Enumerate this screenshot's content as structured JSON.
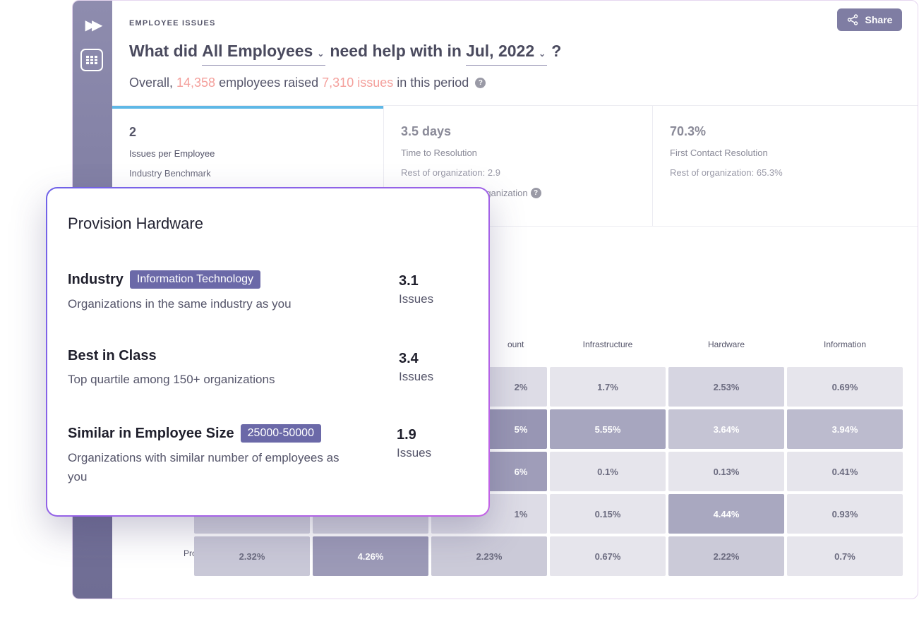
{
  "section_label": "EMPLOYEE ISSUES",
  "share": {
    "label": "Share",
    "icon": "share-icon"
  },
  "sidebar": {
    "expand_icon": "double-chevron-right-icon",
    "grid_icon": "grid-icon"
  },
  "question": {
    "prefix": "What did",
    "group_select": "All Employees",
    "middle": "need help with in",
    "period_select": "Jul, 2022",
    "suffix": "?"
  },
  "overall": {
    "prefix": "Overall,",
    "employees": "14,358",
    "middle": "employees raised",
    "issues": "7,310 issues",
    "suffix": "in this period"
  },
  "metrics": [
    {
      "value": "2",
      "label": "Issues per Employee",
      "sub": "Industry Benchmark"
    },
    {
      "value": "3.5 days",
      "label": "Time to Resolution",
      "sub": "Rest of organization: 2.9",
      "extra": "rganization"
    },
    {
      "value": "70.3%",
      "label": "First Contact Resolution",
      "sub": "Rest of organization: 65.3%"
    }
  ],
  "table": {
    "columns": [
      "ount",
      "Infrastructure",
      "Hardware",
      "Information"
    ],
    "rows": [
      [
        "2%",
        "1.7%",
        "2.53%",
        "0.69%"
      ],
      [
        "5%",
        "5.55%",
        "3.64%",
        "3.94%"
      ],
      [
        "6%",
        "0.1%",
        "0.13%",
        "0.41%"
      ],
      [
        "1%",
        "0.15%",
        "4.44%",
        "0.93%"
      ]
    ],
    "last_row": {
      "label": "Provision",
      "values": [
        "2.32%",
        "4.26%",
        "2.23%",
        "0.67%",
        "2.22%",
        "0.7%"
      ]
    },
    "colors": {
      "light": "#e6e5ec",
      "mid": "#d0cfdc",
      "strong": "#b9b8cc",
      "dark": "#9a98b6"
    }
  },
  "popup": {
    "title": "Provision Hardware",
    "benchmarks": [
      {
        "name": "Industry",
        "tag": "Information Technology",
        "desc": "Organizations in the same industry as you",
        "value": "3.1",
        "unit": "Issues"
      },
      {
        "name": "Best in Class",
        "tag": "",
        "desc": "Top quartile among 150+ organizations",
        "value": "3.4",
        "unit": "Issues"
      },
      {
        "name": "Similar in Employee Size",
        "tag": "25000-50000",
        "desc": "Organizations with similar number of employees as you",
        "value": "1.9",
        "unit": "Issues"
      }
    ]
  },
  "help_glyph": "?"
}
